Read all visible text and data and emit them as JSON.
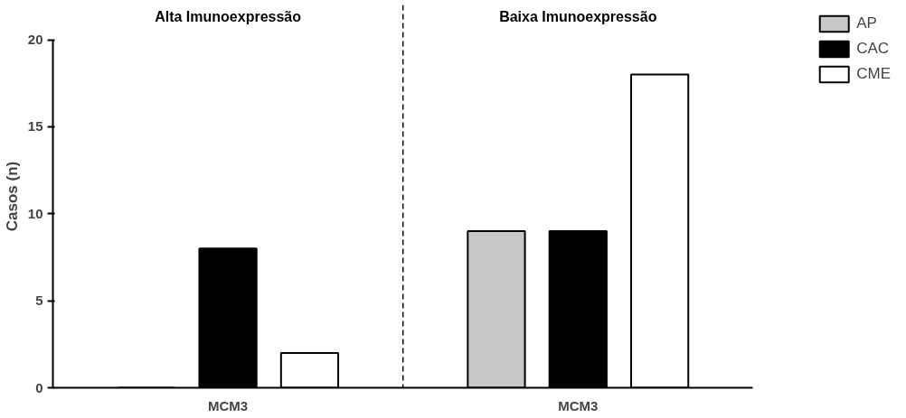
{
  "chart_data": {
    "type": "bar",
    "ylabel": "Casos (n)",
    "categories": [
      "MCM3",
      "MCM3"
    ],
    "series": [
      {
        "name": "AP",
        "color": "#c8c8c8",
        "values": [
          0,
          9
        ]
      },
      {
        "name": "CAC",
        "color": "#000000",
        "values": [
          8,
          9
        ]
      },
      {
        "name": "CME",
        "color": "#ffffff",
        "values": [
          2,
          18
        ]
      }
    ],
    "ylim": [
      0,
      20
    ],
    "yticks": [
      0,
      5,
      10,
      15,
      20
    ],
    "grid": false,
    "legend": "right",
    "annotations": [
      "Alta Imunoexpressão",
      "Baixa Imunoexpressão"
    ]
  }
}
